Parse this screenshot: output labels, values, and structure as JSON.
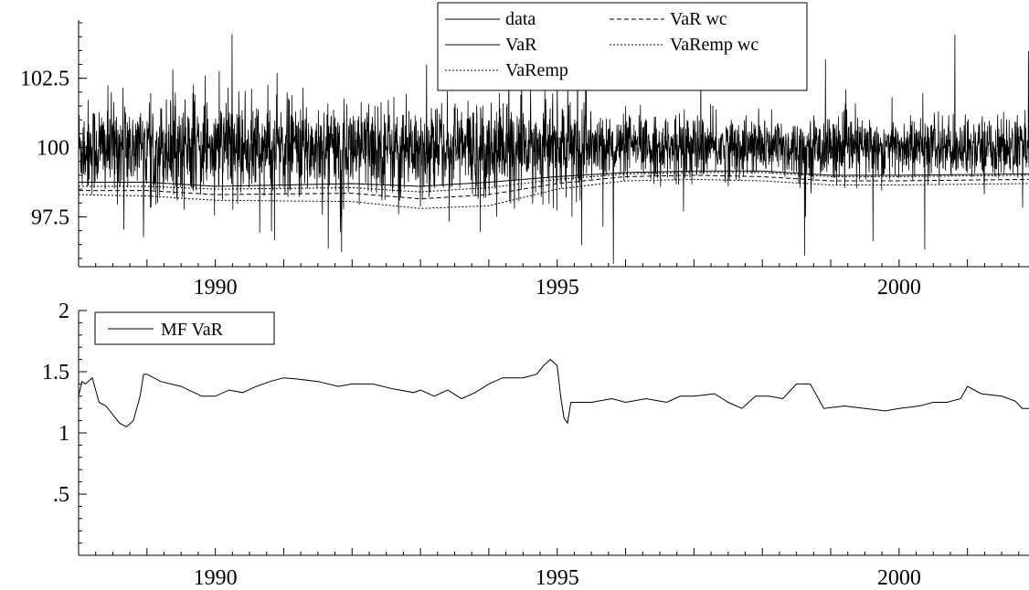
{
  "chart_data": [
    {
      "type": "line",
      "x_range": [
        1988.0,
        2001.9
      ],
      "ylim": [
        95.7,
        104.6
      ],
      "y_ticks": [
        {
          "value": 97.5,
          "label": "97.5"
        },
        {
          "value": 100,
          "label": "100"
        },
        {
          "value": 102.5,
          "label": "102.5"
        }
      ],
      "x_ticks": [
        {
          "value": 1990,
          "label": "1990"
        },
        {
          "value": 1995,
          "label": "1995"
        },
        {
          "value": 2000,
          "label": "2000"
        }
      ],
      "legend_position": "top-right",
      "legend": [
        {
          "label": "data",
          "style": "solid"
        },
        {
          "label": "VaR",
          "style": "solid"
        },
        {
          "label": "VaRemp",
          "style": "dotted"
        },
        {
          "label": "VaR wc",
          "style": "dashed"
        },
        {
          "label": "VaRemp wc",
          "style": "dotted"
        }
      ],
      "series": [
        {
          "name": "data",
          "style": "solid",
          "center": 100,
          "approx_range": [
            95.8,
            104.3
          ]
        },
        {
          "name": "VaR",
          "style": "solid",
          "points": [
            [
              1988.0,
              98.75
            ],
            [
              1989.0,
              98.75
            ],
            [
              1990.0,
              98.6
            ],
            [
              1992.0,
              98.7
            ],
            [
              1993.0,
              98.6
            ],
            [
              1994.0,
              98.75
            ],
            [
              1995.0,
              98.95
            ],
            [
              1996.0,
              99.1
            ],
            [
              1997.0,
              99.15
            ],
            [
              1998.0,
              99.15
            ],
            [
              1999.0,
              99.0
            ],
            [
              2000.0,
              99.0
            ],
            [
              2001.9,
              99.05
            ]
          ]
        },
        {
          "name": "VaRemp",
          "style": "dotted",
          "points": [
            [
              1988.0,
              98.6
            ],
            [
              1989.0,
              98.6
            ],
            [
              1990.0,
              98.5
            ],
            [
              1992.0,
              98.55
            ],
            [
              1993.0,
              98.4
            ],
            [
              1994.0,
              98.55
            ],
            [
              1995.0,
              98.85
            ],
            [
              1996.0,
              99.05
            ],
            [
              1997.0,
              99.1
            ],
            [
              1998.0,
              99.1
            ],
            [
              1999.0,
              98.95
            ],
            [
              2000.0,
              98.95
            ],
            [
              2001.9,
              99.0
            ]
          ]
        },
        {
          "name": "VaR wc",
          "style": "dashed",
          "points": [
            [
              1988.0,
              98.45
            ],
            [
              1989.0,
              98.45
            ],
            [
              1990.0,
              98.3
            ],
            [
              1992.0,
              98.35
            ],
            [
              1993.0,
              98.15
            ],
            [
              1994.0,
              98.3
            ],
            [
              1995.0,
              98.7
            ],
            [
              1996.0,
              98.95
            ],
            [
              1997.0,
              99.0
            ],
            [
              1998.0,
              98.95
            ],
            [
              1999.0,
              98.8
            ],
            [
              2000.0,
              98.8
            ],
            [
              2001.9,
              98.85
            ]
          ]
        },
        {
          "name": "VaRemp wc",
          "style": "dotted",
          "points": [
            [
              1988.0,
              98.3
            ],
            [
              1989.0,
              98.25
            ],
            [
              1990.0,
              98.1
            ],
            [
              1992.0,
              98.05
            ],
            [
              1993.0,
              97.8
            ],
            [
              1994.0,
              97.9
            ],
            [
              1995.0,
              98.5
            ],
            [
              1996.0,
              98.8
            ],
            [
              1997.0,
              98.85
            ],
            [
              1998.0,
              98.8
            ],
            [
              1999.0,
              98.65
            ],
            [
              2000.0,
              98.65
            ],
            [
              2001.9,
              98.7
            ]
          ]
        }
      ]
    },
    {
      "type": "line",
      "x_range": [
        1988.0,
        2001.9
      ],
      "ylim": [
        0.0,
        2.0
      ],
      "y_ticks": [
        {
          "value": 0.5,
          "label": ".5"
        },
        {
          "value": 1,
          "label": "1"
        },
        {
          "value": 1.5,
          "label": "1.5"
        },
        {
          "value": 2,
          "label": "2"
        }
      ],
      "x_ticks": [
        {
          "value": 1990,
          "label": "1990"
        },
        {
          "value": 1995,
          "label": "1995"
        },
        {
          "value": 2000,
          "label": "2000"
        }
      ],
      "legend_position": "top-left",
      "legend": [
        {
          "label": "MF VaR",
          "style": "solid"
        }
      ],
      "series": [
        {
          "name": "MF VaR",
          "style": "solid",
          "points": [
            [
              1988.0,
              1.3
            ],
            [
              1988.05,
              1.42
            ],
            [
              1988.1,
              1.4
            ],
            [
              1988.2,
              1.45
            ],
            [
              1988.25,
              1.35
            ],
            [
              1988.3,
              1.25
            ],
            [
              1988.4,
              1.22
            ],
            [
              1988.5,
              1.15
            ],
            [
              1988.6,
              1.08
            ],
            [
              1988.7,
              1.05
            ],
            [
              1988.8,
              1.1
            ],
            [
              1988.9,
              1.3
            ],
            [
              1988.95,
              1.48
            ],
            [
              1989.0,
              1.48
            ],
            [
              1989.2,
              1.42
            ],
            [
              1989.5,
              1.38
            ],
            [
              1989.8,
              1.3
            ],
            [
              1990.0,
              1.3
            ],
            [
              1990.2,
              1.35
            ],
            [
              1990.4,
              1.33
            ],
            [
              1990.6,
              1.38
            ],
            [
              1990.8,
              1.42
            ],
            [
              1991.0,
              1.45
            ],
            [
              1991.2,
              1.44
            ],
            [
              1991.5,
              1.42
            ],
            [
              1991.8,
              1.38
            ],
            [
              1992.0,
              1.4
            ],
            [
              1992.3,
              1.4
            ],
            [
              1992.6,
              1.36
            ],
            [
              1992.9,
              1.33
            ],
            [
              1993.0,
              1.35
            ],
            [
              1993.2,
              1.3
            ],
            [
              1993.4,
              1.35
            ],
            [
              1993.6,
              1.28
            ],
            [
              1993.8,
              1.33
            ],
            [
              1994.0,
              1.4
            ],
            [
              1994.2,
              1.45
            ],
            [
              1994.5,
              1.45
            ],
            [
              1994.7,
              1.48
            ],
            [
              1994.8,
              1.55
            ],
            [
              1994.9,
              1.6
            ],
            [
              1995.0,
              1.55
            ],
            [
              1995.05,
              1.3
            ],
            [
              1995.1,
              1.12
            ],
            [
              1995.15,
              1.08
            ],
            [
              1995.2,
              1.25
            ],
            [
              1995.5,
              1.25
            ],
            [
              1995.8,
              1.28
            ],
            [
              1996.0,
              1.25
            ],
            [
              1996.3,
              1.28
            ],
            [
              1996.6,
              1.25
            ],
            [
              1996.8,
              1.3
            ],
            [
              1997.0,
              1.3
            ],
            [
              1997.3,
              1.32
            ],
            [
              1997.5,
              1.25
            ],
            [
              1997.7,
              1.2
            ],
            [
              1997.9,
              1.3
            ],
            [
              1998.1,
              1.3
            ],
            [
              1998.3,
              1.28
            ],
            [
              1998.5,
              1.4
            ],
            [
              1998.7,
              1.4
            ],
            [
              1998.9,
              1.2
            ],
            [
              1999.2,
              1.22
            ],
            [
              1999.5,
              1.2
            ],
            [
              1999.8,
              1.18
            ],
            [
              2000.0,
              1.2
            ],
            [
              2000.3,
              1.22
            ],
            [
              2000.5,
              1.25
            ],
            [
              2000.7,
              1.25
            ],
            [
              2000.9,
              1.28
            ],
            [
              2001.0,
              1.38
            ],
            [
              2001.2,
              1.32
            ],
            [
              2001.5,
              1.3
            ],
            [
              2001.7,
              1.26
            ],
            [
              2001.8,
              1.2
            ],
            [
              2001.9,
              1.2
            ]
          ]
        }
      ]
    }
  ]
}
